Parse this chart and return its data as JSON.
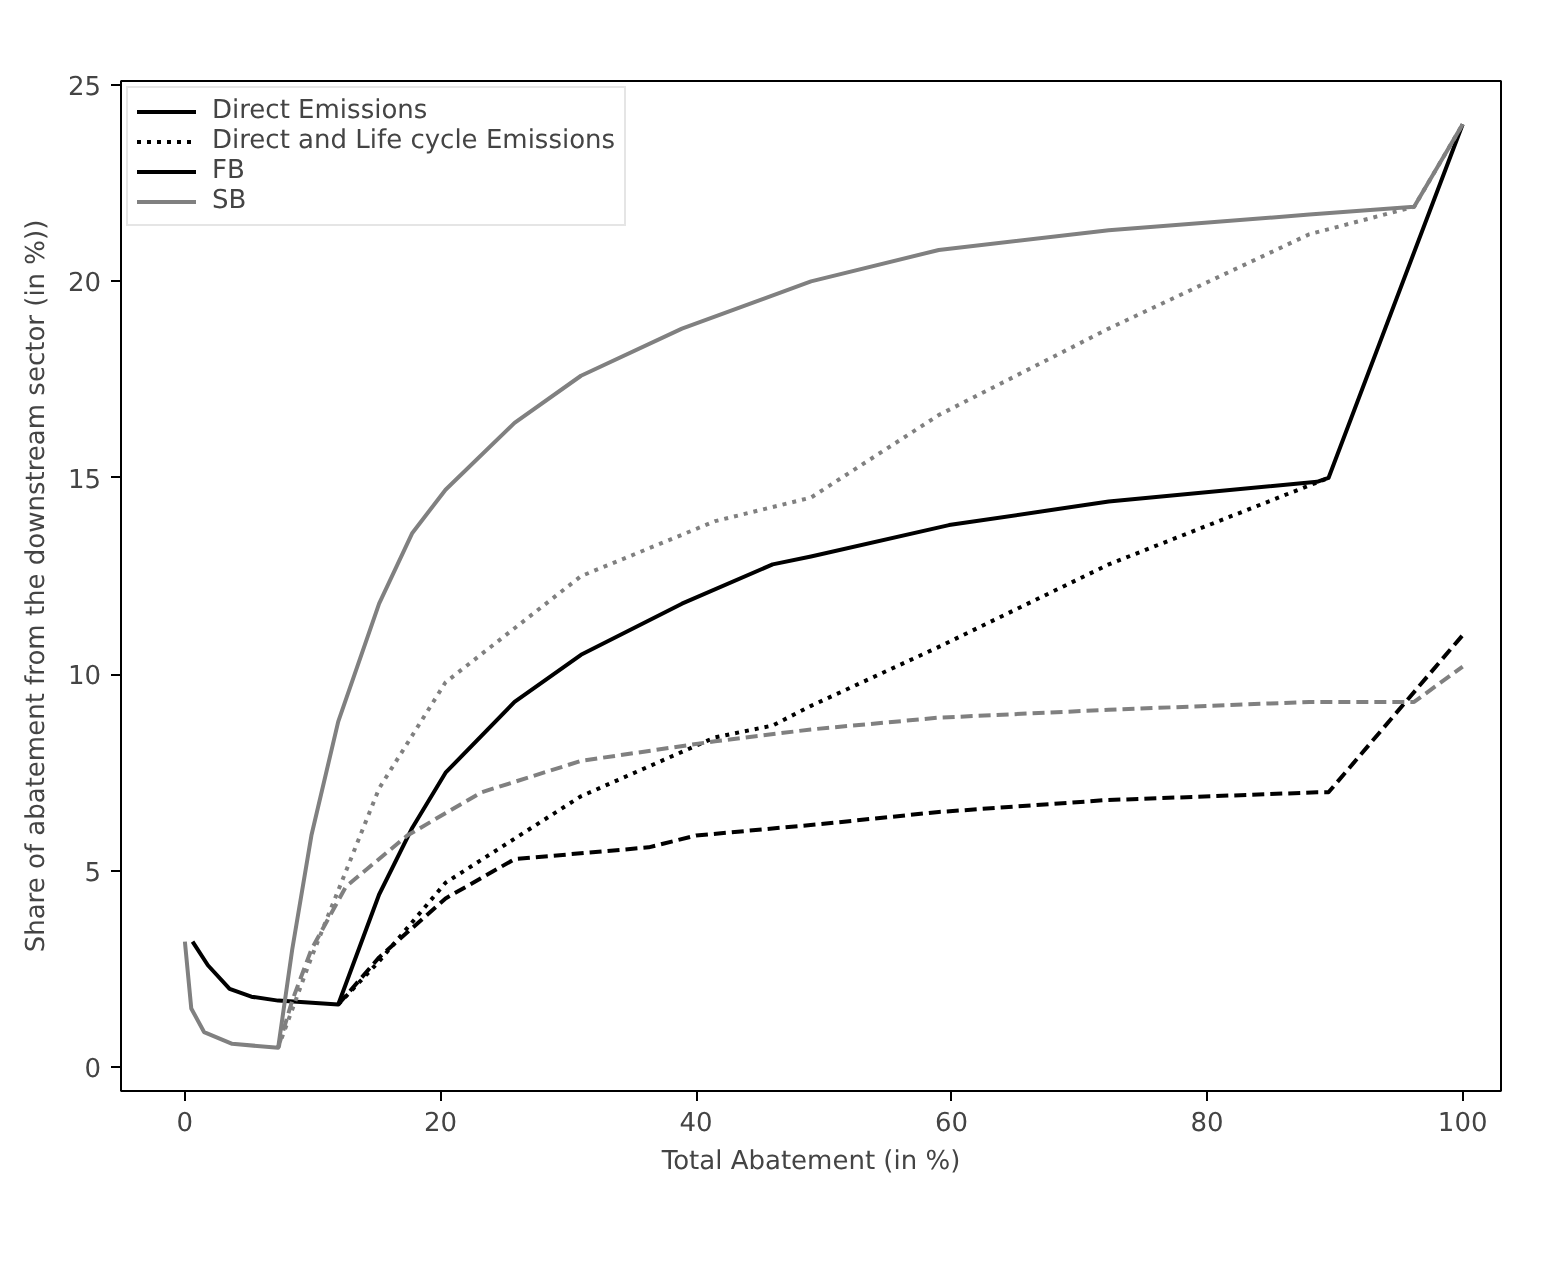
{
  "chart_data": {
    "type": "line",
    "xlabel": "Total Abatement (in %)",
    "ylabel": "Share of abatement from the downstream sector (in %))",
    "xlim": [
      -5,
      103
    ],
    "ylim": [
      -0.6,
      25.1
    ],
    "xticks": [
      0,
      20,
      40,
      60,
      80,
      100
    ],
    "yticks": [
      0,
      5,
      10,
      15,
      20,
      25
    ],
    "grid": false,
    "legend": "top left",
    "annotations": [
      "FB",
      "SB"
    ],
    "series": [
      {
        "name": "Direct Emissions",
        "color": "#000000",
        "line_style": "solid",
        "x": [
          0.6,
          1.8,
          3.5,
          5.2,
          7.3,
          12,
          15.2,
          17.8,
          20.4,
          25.8,
          31,
          38.9,
          46,
          49,
          59.8,
          72.3,
          88.6,
          89.5,
          100
        ],
        "values": [
          3.2,
          2.6,
          2.0,
          1.8,
          1.7,
          1.6,
          4.4,
          6.1,
          7.5,
          9.3,
          10.5,
          11.8,
          12.8,
          13.0,
          13.8,
          14.4,
          14.9,
          15.0,
          24
        ]
      },
      {
        "name": "Direct and Life cycle Emissions",
        "color": "#000000",
        "line_style": "dotted",
        "x": [
          12,
          15.2,
          20.4,
          31,
          41.5,
          46,
          49,
          59,
          72.3,
          89.5
        ],
        "values": [
          1.6,
          2.7,
          4.7,
          6.9,
          8.4,
          8.7,
          9.2,
          10.7,
          12.8,
          15.0
        ]
      },
      {
        "color": "#000000",
        "line_style": "dashed",
        "x": [
          12,
          15.2,
          20.4,
          25.8,
          36.3,
          40,
          50,
          59,
          72,
          88.6,
          89.5,
          100
        ],
        "values": [
          1.6,
          2.8,
          4.3,
          5.3,
          5.6,
          5.9,
          6.2,
          6.5,
          6.8,
          7.0,
          7.0,
          11
        ]
      },
      {
        "color": "#808080",
        "line_style": "solid",
        "x": [
          0,
          0.5,
          1.5,
          3.7,
          7.3,
          8.4,
          9.9,
          12,
          15.2,
          17.8,
          20.4,
          25.8,
          31,
          38.9,
          49,
          59,
          72.3,
          88,
          96.2,
          100
        ],
        "values": [
          3.2,
          1.5,
          0.9,
          0.6,
          0.5,
          3.0,
          5.9,
          8.8,
          11.8,
          13.6,
          14.7,
          16.4,
          17.6,
          18.8,
          20.0,
          20.8,
          21.3,
          21.7,
          21.9,
          24
        ]
      },
      {
        "color": "#808080",
        "line_style": "dotted",
        "x": [
          7.3,
          9.9,
          15.2,
          20.4,
          31,
          41.5,
          49,
          59,
          72.3,
          88,
          96.2,
          100
        ],
        "values": [
          0.5,
          2.8,
          7.1,
          9.8,
          12.5,
          13.9,
          14.5,
          16.6,
          18.8,
          21.2,
          21.9,
          24
        ]
      },
      {
        "color": "#808080",
        "line_style": "dashed",
        "x": [
          7.3,
          8.4,
          9.9,
          12.6,
          17.4,
          23.2,
          31,
          41.5,
          49,
          59,
          72.3,
          88,
          96.2,
          100
        ],
        "values": [
          0.5,
          1.7,
          3.0,
          4.6,
          5.9,
          7.0,
          7.8,
          8.3,
          8.6,
          8.9,
          9.1,
          9.3,
          9.3,
          10.2
        ]
      }
    ]
  }
}
